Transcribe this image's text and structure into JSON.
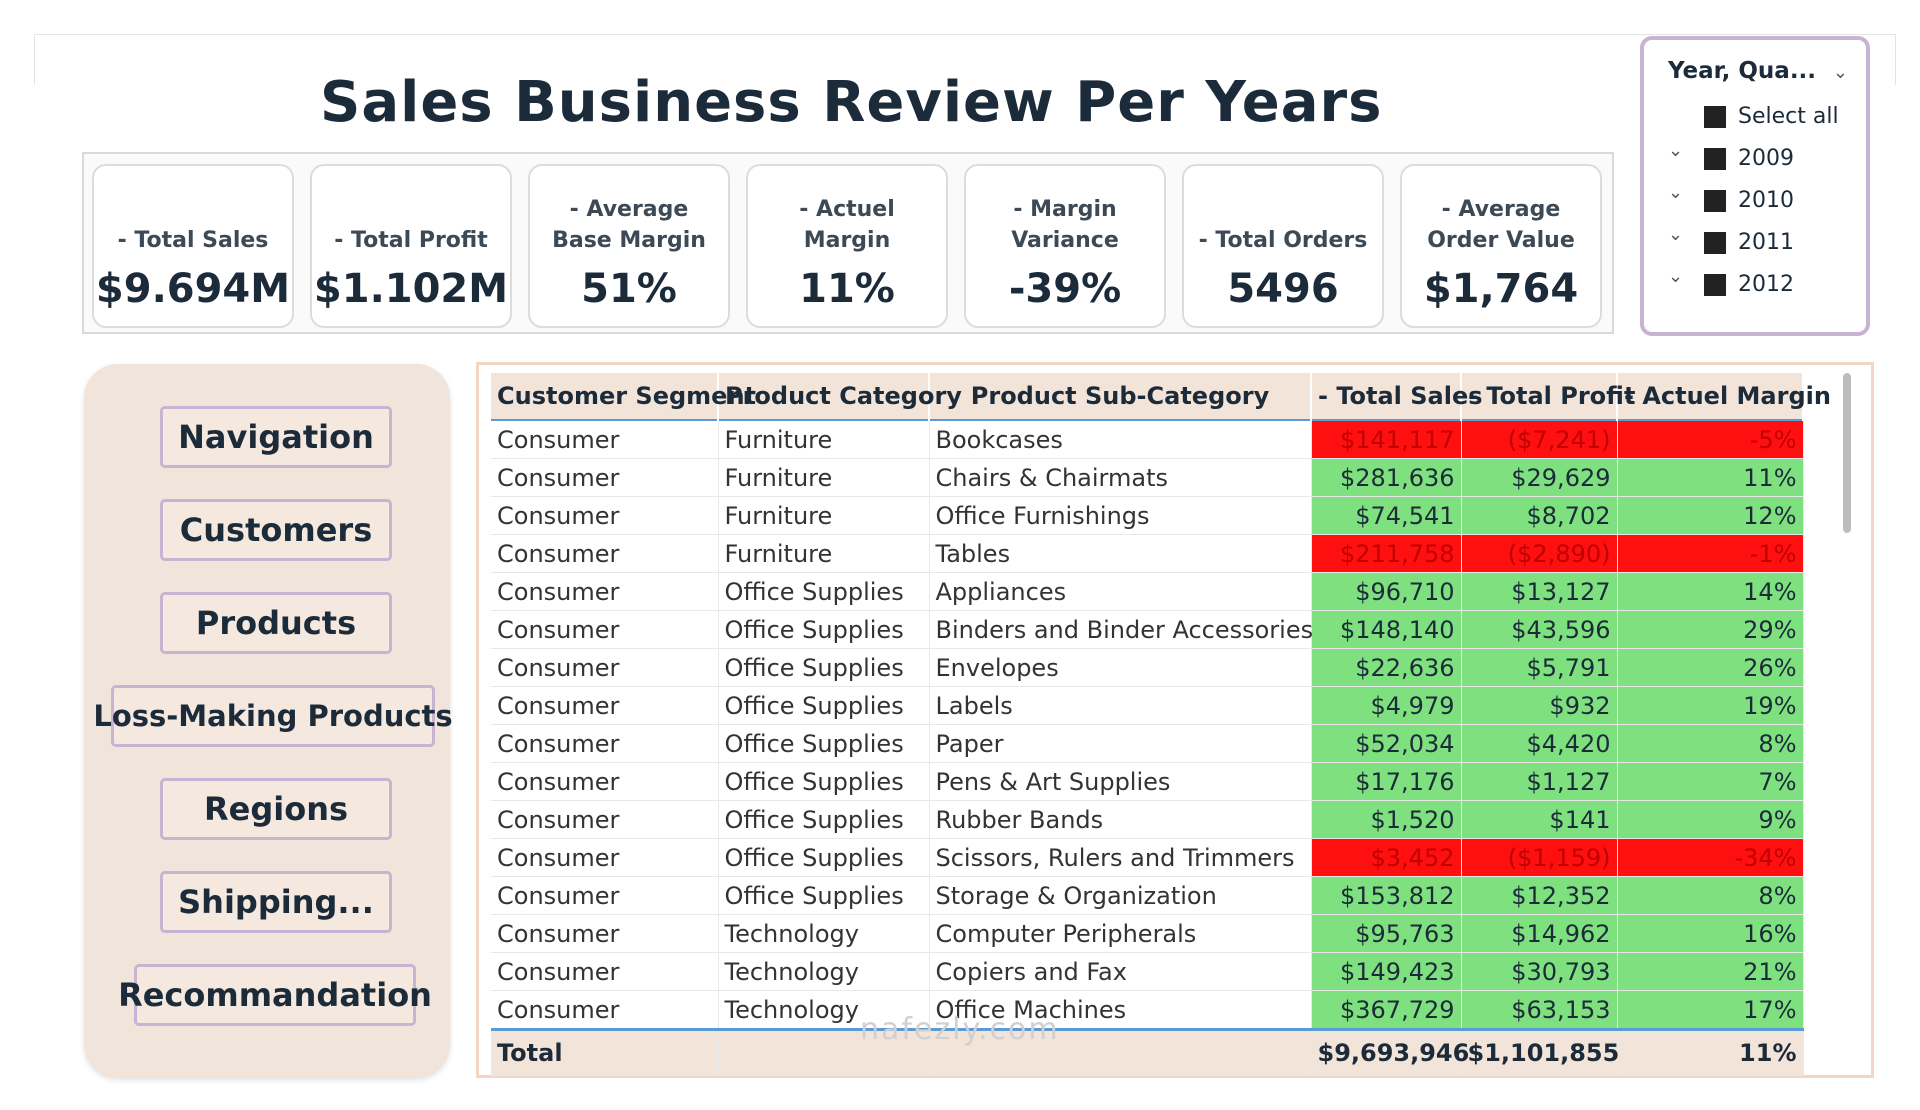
{
  "title": "Sales Business Review Per Years",
  "kpis": [
    {
      "label": "- Total Sales",
      "value": "$9.694M"
    },
    {
      "label": "- Total Profit",
      "value": "$1.102M"
    },
    {
      "label": "- Average Base Margin",
      "value": "51%"
    },
    {
      "label": "- Actuel Margin",
      "value": "11%"
    },
    {
      "label": "- Margin Variance",
      "value": "-39%"
    },
    {
      "label": "- Total Orders",
      "value": "5496"
    },
    {
      "label": "- Average Order Value",
      "value": "$1,764"
    }
  ],
  "slicer": {
    "title": "Year, Qua...",
    "select_all": "Select all",
    "years": [
      "2009",
      "2010",
      "2011",
      "2012"
    ]
  },
  "nav": {
    "navigation": "Navigation",
    "customers": "Customers",
    "products": "Products",
    "loss_making": "Loss-Making Products",
    "regions": "Regions",
    "shipping": "Shipping...",
    "recommandation": "Recommandation"
  },
  "table": {
    "headers": [
      "Customer Segment",
      "Product Category",
      "Product Sub-Category",
      "- Total Sales",
      "- Total Profit",
      "- Actuel Margin"
    ],
    "rows": [
      [
        "Consumer",
        "Furniture",
        "Bookcases",
        "$141,117",
        "($7,241)",
        "-5%"
      ],
      [
        "Consumer",
        "Furniture",
        "Chairs & Chairmats",
        "$281,636",
        "$29,629",
        "11%"
      ],
      [
        "Consumer",
        "Furniture",
        "Office Furnishings",
        "$74,541",
        "$8,702",
        "12%"
      ],
      [
        "Consumer",
        "Furniture",
        "Tables",
        "$211,758",
        "($2,890)",
        "-1%"
      ],
      [
        "Consumer",
        "Office Supplies",
        "Appliances",
        "$96,710",
        "$13,127",
        "14%"
      ],
      [
        "Consumer",
        "Office Supplies",
        "Binders and Binder Accessories",
        "$148,140",
        "$43,596",
        "29%"
      ],
      [
        "Consumer",
        "Office Supplies",
        "Envelopes",
        "$22,636",
        "$5,791",
        "26%"
      ],
      [
        "Consumer",
        "Office Supplies",
        "Labels",
        "$4,979",
        "$932",
        "19%"
      ],
      [
        "Consumer",
        "Office Supplies",
        "Paper",
        "$52,034",
        "$4,420",
        "8%"
      ],
      [
        "Consumer",
        "Office Supplies",
        "Pens & Art Supplies",
        "$17,176",
        "$1,127",
        "7%"
      ],
      [
        "Consumer",
        "Office Supplies",
        "Rubber Bands",
        "$1,520",
        "$141",
        "9%"
      ],
      [
        "Consumer",
        "Office Supplies",
        "Scissors, Rulers and Trimmers",
        "$3,452",
        "($1,159)",
        "-34%"
      ],
      [
        "Consumer",
        "Office Supplies",
        "Storage & Organization",
        "$153,812",
        "$12,352",
        "8%"
      ],
      [
        "Consumer",
        "Technology",
        "Computer Peripherals",
        "$95,763",
        "$14,962",
        "16%"
      ],
      [
        "Consumer",
        "Technology",
        "Copiers and Fax",
        "$149,423",
        "$30,793",
        "21%"
      ],
      [
        "Consumer",
        "Technology",
        "Office Machines",
        "$367,729",
        "$63,153",
        "17%"
      ]
    ],
    "row_status": [
      "neg",
      "pos",
      "pos",
      "neg",
      "pos",
      "pos",
      "pos",
      "pos",
      "pos",
      "pos",
      "pos",
      "neg",
      "pos",
      "pos",
      "pos",
      "pos"
    ],
    "total": {
      "label": "Total",
      "sales": "$9,693,946",
      "profit": "$1,101,855",
      "margin": "11%"
    }
  },
  "watermark": "nafezly.com",
  "colors": {
    "positive": "#7ee07e",
    "negative": "#ff1010",
    "accent_border": "#c9b3d2",
    "panel": "#f1e4da"
  }
}
